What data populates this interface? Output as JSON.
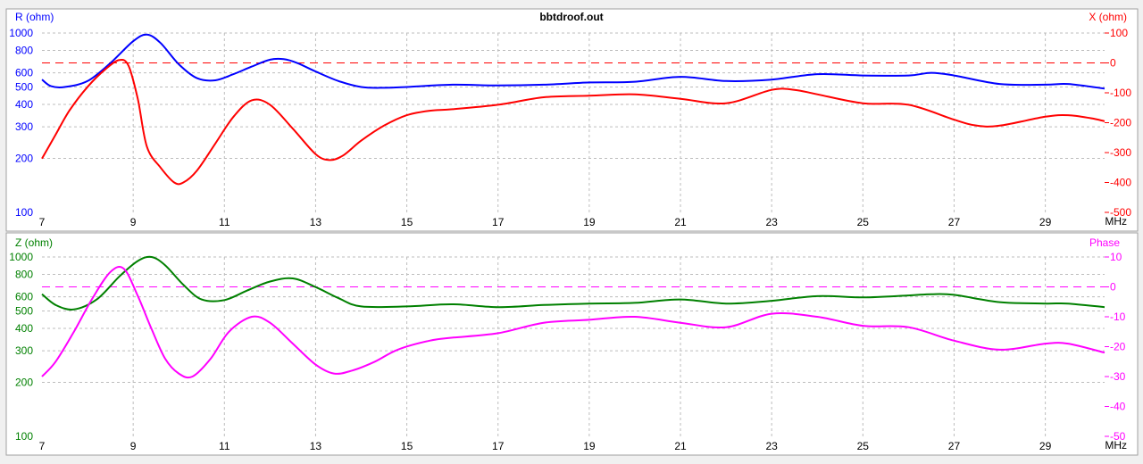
{
  "window_title": "bbtdroof.out",
  "colors": {
    "r": "#0000ff",
    "x": "#ff0000",
    "z": "#008000",
    "phase": "#ff00ff",
    "grid": "#bdbdbd",
    "axis_text": "#000000"
  },
  "chart_data": [
    {
      "type": "line",
      "title": "bbtdroof.out",
      "xlabel": "MHz",
      "x_ticks": [
        7,
        9,
        11,
        13,
        15,
        17,
        19,
        21,
        23,
        25,
        27,
        29
      ],
      "xlim": [
        7,
        30.3
      ],
      "left_axis": {
        "label": "R (ohm)",
        "scale": "log",
        "range": [
          100,
          1000
        ],
        "ticks": [
          100,
          200,
          300,
          400,
          500,
          600,
          800,
          1000
        ]
      },
      "right_axis": {
        "label": "X (ohm)",
        "scale": "linear",
        "range": [
          -500,
          100
        ],
        "ticks": [
          100,
          0,
          -100,
          -200,
          -300,
          -400,
          -500
        ]
      },
      "reference_line": {
        "axis": "right",
        "value": 0
      },
      "series": [
        {
          "name": "R (ohm)",
          "axis": "left",
          "x": [
            7,
            7.2,
            7.5,
            8,
            8.5,
            9,
            9.3,
            9.6,
            10,
            10.4,
            10.8,
            11.2,
            11.6,
            12,
            12.3,
            12.6,
            13,
            13.5,
            14,
            14.5,
            15,
            16,
            17,
            18,
            19,
            20,
            21,
            22,
            23,
            24,
            25,
            26,
            26.5,
            27,
            28,
            29,
            29.5,
            30.3
          ],
          "values": [
            550,
            505,
            500,
            540,
            680,
            900,
            980,
            880,
            670,
            560,
            545,
            590,
            650,
            710,
            715,
            680,
            610,
            540,
            500,
            495,
            500,
            515,
            510,
            515,
            530,
            535,
            570,
            540,
            550,
            590,
            580,
            580,
            600,
            580,
            520,
            515,
            520,
            490
          ]
        },
        {
          "name": "X (ohm)",
          "axis": "right",
          "x": [
            7,
            7.3,
            7.6,
            8,
            8.4,
            8.7,
            8.9,
            9.1,
            9.3,
            9.6,
            9.9,
            10.1,
            10.4,
            10.8,
            11.2,
            11.6,
            12,
            12.5,
            13,
            13.3,
            13.6,
            14,
            14.5,
            15,
            15.5,
            16,
            17,
            18,
            19,
            20,
            21,
            22,
            23,
            23.5,
            24,
            25,
            26,
            27,
            27.5,
            28,
            29,
            29.5,
            30,
            30.3
          ],
          "values": [
            -320,
            -240,
            -160,
            -80,
            -20,
            10,
            -10,
            -120,
            -280,
            -350,
            -400,
            -400,
            -360,
            -270,
            -180,
            -125,
            -140,
            -220,
            -305,
            -325,
            -310,
            -260,
            -210,
            -175,
            -160,
            -155,
            -140,
            -115,
            -110,
            -105,
            -120,
            -135,
            -90,
            -90,
            -105,
            -135,
            -140,
            -190,
            -210,
            -210,
            -180,
            -175,
            -185,
            -195
          ]
        }
      ]
    },
    {
      "type": "line",
      "xlabel": "MHz",
      "x_ticks": [
        7,
        9,
        11,
        13,
        15,
        17,
        19,
        21,
        23,
        25,
        27,
        29
      ],
      "xlim": [
        7,
        30.3
      ],
      "left_axis": {
        "label": "Z (ohm)",
        "scale": "log",
        "range": [
          100,
          1000
        ],
        "ticks": [
          100,
          200,
          300,
          400,
          500,
          600,
          800,
          1000
        ]
      },
      "right_axis": {
        "label": "Phase",
        "scale": "linear",
        "range": [
          -50,
          10
        ],
        "ticks": [
          10,
          0,
          -10,
          -20,
          -30,
          -40,
          -50
        ]
      },
      "reference_line": {
        "axis": "right",
        "value": 0
      },
      "series": [
        {
          "name": "Z (ohm)",
          "axis": "left",
          "x": [
            7,
            7.3,
            7.7,
            8.2,
            8.7,
            9.1,
            9.4,
            9.7,
            10.1,
            10.5,
            11,
            11.5,
            12,
            12.5,
            13,
            13.5,
            14,
            15,
            16,
            17,
            18,
            19,
            20,
            21,
            22,
            23,
            24,
            25,
            26,
            26.5,
            27,
            28,
            29,
            29.5,
            30.3
          ],
          "values": [
            620,
            540,
            510,
            580,
            780,
            950,
            1000,
            900,
            700,
            580,
            575,
            650,
            730,
            760,
            680,
            590,
            530,
            530,
            545,
            525,
            540,
            550,
            555,
            580,
            550,
            570,
            605,
            595,
            610,
            620,
            615,
            560,
            550,
            550,
            525
          ]
        },
        {
          "name": "Phase",
          "axis": "right",
          "x": [
            7,
            7.3,
            7.7,
            8.1,
            8.5,
            8.8,
            9.1,
            9.4,
            9.7,
            10,
            10.3,
            10.7,
            11.1,
            11.6,
            12,
            12.5,
            13,
            13.4,
            13.8,
            14.3,
            14.8,
            15.5,
            16,
            17,
            18,
            19,
            20,
            21,
            22,
            23,
            24,
            25,
            26,
            27,
            28,
            29,
            29.5,
            30.3
          ],
          "values": [
            -30,
            -25,
            -15,
            -4,
            5,
            6,
            -3,
            -14,
            -24,
            -29,
            -30,
            -24,
            -15,
            -10,
            -12,
            -19,
            -26,
            -29,
            -28,
            -25,
            -21,
            -18,
            -17,
            -15.5,
            -12,
            -11,
            -10,
            -12,
            -13.5,
            -9,
            -10,
            -13,
            -13.5,
            -18,
            -21,
            -19,
            -19,
            -22
          ]
        }
      ]
    }
  ]
}
